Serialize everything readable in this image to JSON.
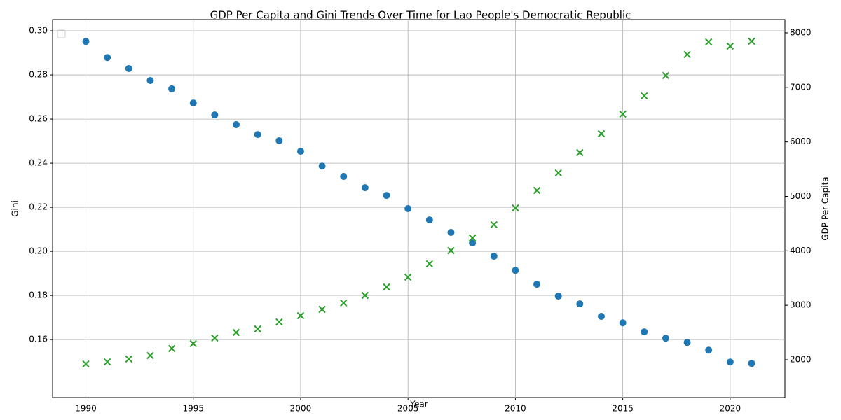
{
  "chart_data": {
    "type": "scatter",
    "title": "GDP Per Capita and Gini Trends Over Time for Lao People's Democratic Republic",
    "x_label": "Year",
    "y_label": "Gini",
    "y2_label": "GDP Per Capita",
    "x": [
      1990,
      1991,
      1992,
      1993,
      1994,
      1995,
      1996,
      1997,
      1998,
      1999,
      2000,
      2001,
      2002,
      2003,
      2004,
      2005,
      2006,
      2007,
      2008,
      2009,
      2010,
      2011,
      2012,
      2013,
      2014,
      2015,
      2016,
      2017,
      2018,
      2019,
      2020,
      2021
    ],
    "series": [
      {
        "color": "#1f77b4",
        "marker": "circle",
        "label_color": "#1f77b4",
        "values": [
          0.2952,
          0.2879,
          0.2829,
          0.2775,
          0.2737,
          0.2673,
          0.2619,
          0.2575,
          0.253,
          0.2502,
          0.2454,
          0.2387,
          0.234,
          0.2289,
          0.2254,
          0.2194,
          0.2143,
          0.2086,
          0.2038,
          0.1978,
          0.1914,
          0.1851,
          0.1797,
          0.1762,
          0.1705,
          0.1676,
          0.1635,
          0.1606,
          0.1587,
          0.1552,
          0.1498,
          0.1492
        ]
      },
      {
        "color": "#2ca02c",
        "marker": "x",
        "axis": "y2",
        "label_color": "#2ca02c",
        "values": [
          1923,
          1961,
          2013,
          2077,
          2206,
          2296,
          2398,
          2501,
          2565,
          2694,
          2809,
          2925,
          3041,
          3182,
          3336,
          3516,
          3760,
          4004,
          4236,
          4480,
          4788,
          5109,
          5431,
          5803,
          6150,
          6510,
          6844,
          7217,
          7602,
          7834,
          7756,
          7846
        ]
      }
    ],
    "xlim": [
      1988.45,
      2022.55
    ],
    "xticks": [
      1990,
      1995,
      2000,
      2005,
      2010,
      2015,
      2020
    ],
    "ylim": [
      0.1337,
      0.3051
    ],
    "yticks": [
      0.16,
      0.18,
      {
        "value": 0.2,
        "label": "0.20"
      },
      0.22,
      0.24,
      0.26,
      0.28,
      {
        "value": 0.3,
        "label": "0.30"
      }
    ],
    "y2lim": [
      1306,
      8244
    ],
    "y2ticks": [
      2000,
      3000,
      4000,
      5000,
      6000,
      7000,
      8000
    ],
    "grid": true
  }
}
